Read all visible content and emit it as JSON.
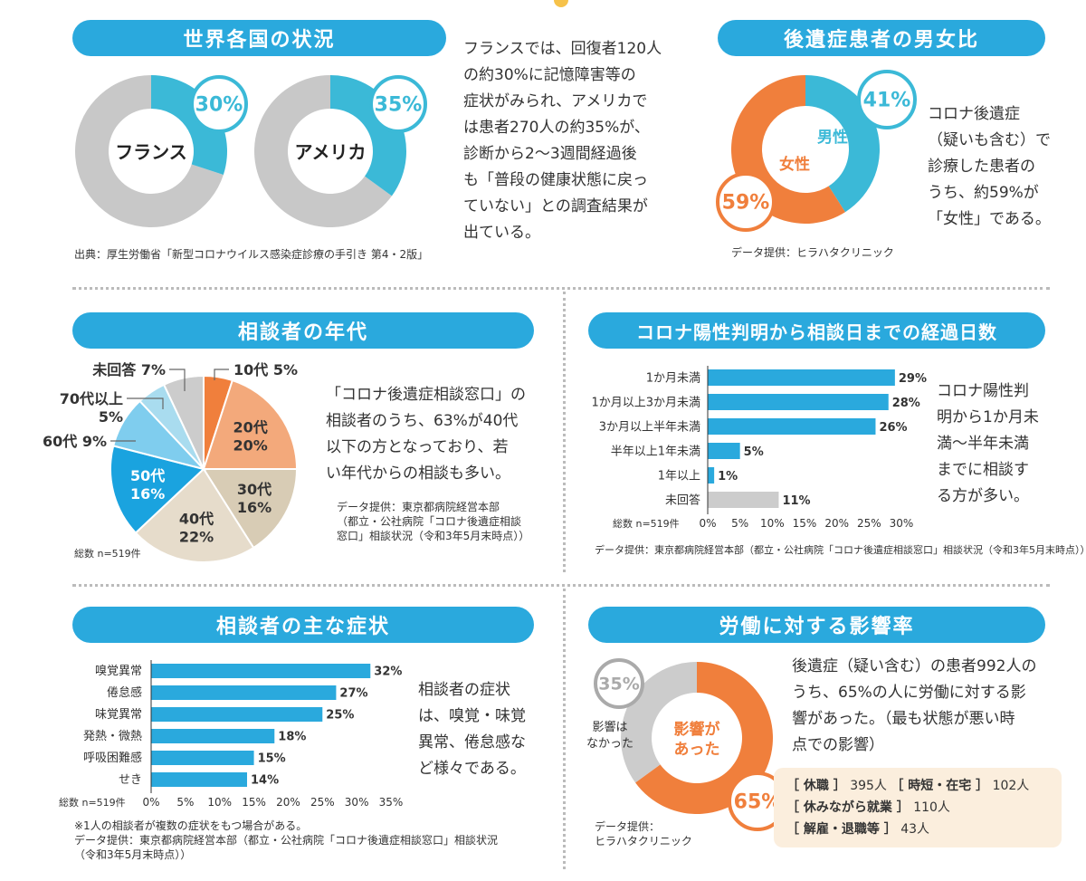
{
  "world": {
    "title": "世界各国の状況",
    "donuts": [
      {
        "label": "フランス",
        "value": 30,
        "value_text": "30%"
      },
      {
        "label": "アメリカ",
        "value": 35,
        "value_text": "35%"
      }
    ],
    "text": [
      "フランスでは、回復者120人",
      "の約30%に記憶障害等の",
      "症状がみられ、アメリカで",
      "は患者270人の約35%が、",
      "診断から2〜3週間経過後",
      "も「普段の健康状態に戻っ",
      "ていない」との調査結果が",
      "出ている。"
    ],
    "source": "出典：厚生労働省「新型コロナウイルス感染症診療の手引き 第4・2版」"
  },
  "gender": {
    "title": "後遺症患者の男女比",
    "male_label": "男性",
    "female_label": "女性",
    "male_value": 41,
    "male_text": "41%",
    "female_value": 59,
    "female_text": "59%",
    "text": [
      "コロナ後遺症",
      "（疑いも含む）で",
      "診療した患者の",
      "うち、約59%が",
      "「女性」である。"
    ],
    "source": "データ提供：ヒラハタクリニック"
  },
  "age": {
    "title": "相談者の年代",
    "chart_data": {
      "type": "pie",
      "slices": [
        {
          "label": "10代",
          "value": 5,
          "text": "10代 5%"
        },
        {
          "label": "20代",
          "value": 20,
          "text1": "20代",
          "text2": "20%"
        },
        {
          "label": "30代",
          "value": 16,
          "text1": "30代",
          "text2": "16%"
        },
        {
          "label": "40代",
          "value": 22,
          "text1": "40代",
          "text2": "22%"
        },
        {
          "label": "50代",
          "value": 16,
          "text1": "50代",
          "text2": "16%"
        },
        {
          "label": "60代",
          "value": 9,
          "text": "60代 9%"
        },
        {
          "label": "70代以上",
          "value": 5,
          "text1": "70代以上",
          "text2": "5%"
        },
        {
          "label": "未回答",
          "value": 7,
          "text": "未回答 7%"
        }
      ]
    },
    "total": "総数 n=519件",
    "text": [
      "「コロナ後遺症相談窓口」の",
      "相談者のうち、63%が40代",
      "以下の方となっており、若",
      "い年代からの相談も多い。"
    ],
    "source": [
      "データ提供：東京都病院経営本部",
      "（都立・公社病院「コロナ後遺症相談",
      "窓口」相談状況（令和3年5月末時点））"
    ]
  },
  "days": {
    "title": "コロナ陽性判明から相談日までの経過日数",
    "chart_data": {
      "type": "bar",
      "categories": [
        "1か月未満",
        "1か月以上3か月未満",
        "3か月以上半年未満",
        "半年以上1年未満",
        "1年以上",
        "未回答"
      ],
      "values": [
        29,
        28,
        26,
        5,
        1,
        11
      ],
      "value_labels": [
        "29%",
        "28%",
        "26%",
        "5%",
        "1%",
        "11%"
      ],
      "xlim": [
        0,
        30
      ],
      "ticks": [
        "0%",
        "5%",
        "10%",
        "15%",
        "20%",
        "25%",
        "30%"
      ]
    },
    "total": "総数 n=519件",
    "text": [
      "コロナ陽性判",
      "明から1か月未",
      "満〜半年未満",
      "までに相談す",
      "る方が多い。"
    ],
    "source": "データ提供：東京都病院経営本部（都立・公社病院「コロナ後遺症相談窓口」相談状況（令和3年5月末時点））"
  },
  "symptoms": {
    "title": "相談者の主な症状",
    "chart_data": {
      "type": "bar",
      "categories": [
        "嗅覚異常",
        "倦怠感",
        "味覚異常",
        "発熱・微熱",
        "呼吸困難感",
        "せき"
      ],
      "values": [
        32,
        27,
        25,
        18,
        15,
        14
      ],
      "value_labels": [
        "32%",
        "27%",
        "25%",
        "18%",
        "15%",
        "14%"
      ],
      "xlim": [
        0,
        35
      ],
      "ticks": [
        "0%",
        "5%",
        "10%",
        "15%",
        "20%",
        "25%",
        "30%",
        "35%"
      ]
    },
    "total": "総数 n=519件",
    "text": [
      "相談者の症状",
      "は、嗅覚・味覚",
      "異常、倦怠感な",
      "ど様々である。"
    ],
    "notes": [
      "※1人の相談者が複数の症状をもつ場合がある。",
      "データ提供：東京都病院経営本部（都立・公社病院「コロナ後遺症相談窓口」相談状況",
      "（令和3年5月末時点））"
    ]
  },
  "work": {
    "title": "労働に対する影響率",
    "no_value": 35,
    "no_text": "35%",
    "no_label": [
      "影響は",
      "なかった"
    ],
    "yes_value": 65,
    "yes_text": "65%",
    "yes_label": [
      "影響が",
      "あった"
    ],
    "text": [
      "後遺症（疑い含む）の患者992人の",
      "うち、65%の人に労働に対する影",
      "響があった。（最も状態が悪い時",
      "点での影響）"
    ],
    "breakdown": [
      {
        "label": "休職",
        "count": "395人",
        "label2": "時短・在宅",
        "count2": "102人"
      },
      {
        "label": "休みながら就業",
        "count": "110人"
      },
      {
        "label": "解雇・退職等",
        "count": "43人"
      }
    ],
    "source": [
      "データ提供：",
      "ヒラハタクリニック"
    ]
  },
  "colors": {
    "blue": "#2aa9dd",
    "cyan": "#3bb9d7",
    "orange": "#f07f3c",
    "gray": "#cccccc",
    "beige": "#d8ccb5",
    "salmon": "#f3a97b",
    "lightblue": "#7fcdee",
    "paleblue": "#a9dcef"
  }
}
